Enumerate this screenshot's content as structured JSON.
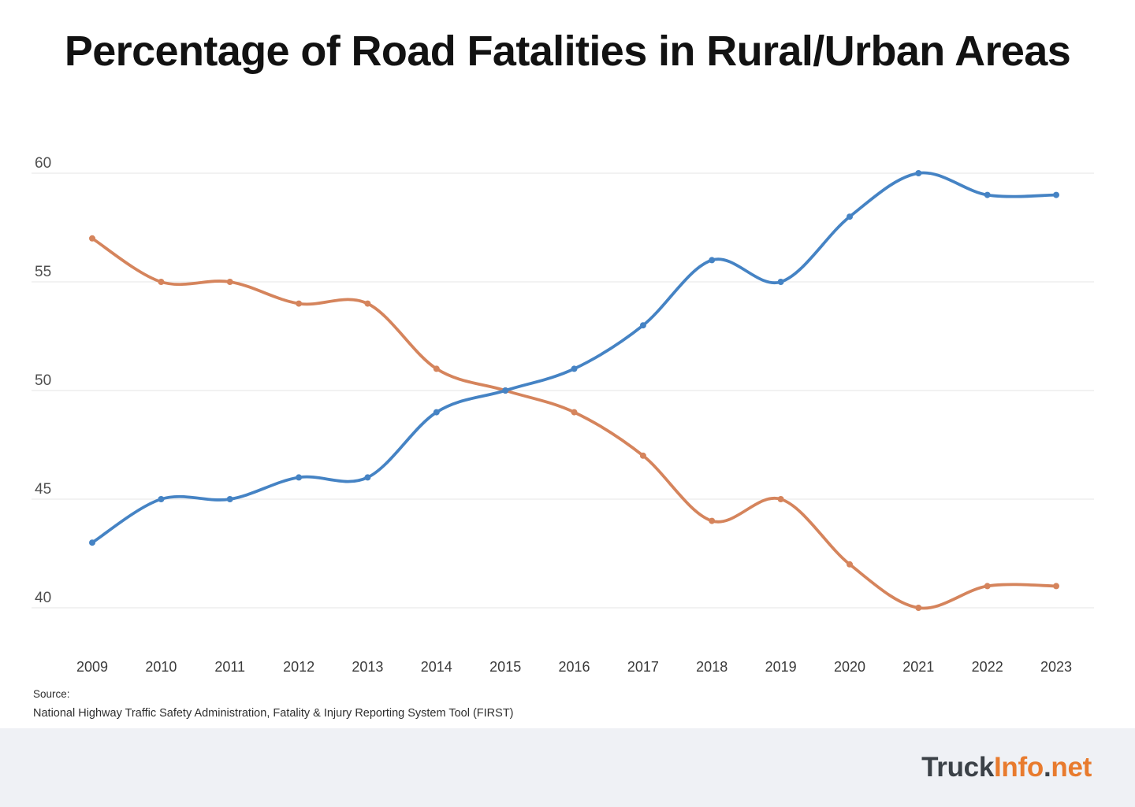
{
  "page": {
    "title": "Percentage of Road Fatalities in Rural/Urban Areas",
    "source_label": "Source:",
    "source_text": "National Highway Traffic Safety Administration, Fatality & Injury Reporting System Tool (FIRST)"
  },
  "footer": {
    "logo_segments": [
      {
        "text": "Truck",
        "color": "#3b4147"
      },
      {
        "text": "Info",
        "color": "#e87b2e"
      },
      {
        "text": ".",
        "color": "#3b4147"
      },
      {
        "text": "net",
        "color": "#e87b2e"
      }
    ]
  },
  "colors": {
    "blue_line": "#4583c4",
    "orange_line": "#d5845c",
    "gridline": "#e4e4e4",
    "axis_label": "#4f4f4f",
    "x_label": "#3a3a3a",
    "footer_bg": "#eff1f5",
    "title": "#121212"
  },
  "chart_data": {
    "type": "line",
    "title": "Percentage of Road Fatalities in Rural/Urban Areas",
    "categories": [
      "2009",
      "2010",
      "2011",
      "2012",
      "2013",
      "2014",
      "2015",
      "2016",
      "2017",
      "2018",
      "2019",
      "2020",
      "2021",
      "2022",
      "2023"
    ],
    "series": [
      {
        "name": "orange-series",
        "color": "#d5845c",
        "values": [
          57,
          55,
          55,
          54,
          54,
          51,
          50,
          49,
          47,
          44,
          45,
          42,
          40,
          41,
          41
        ]
      },
      {
        "name": "blue-series",
        "color": "#4583c4",
        "values": [
          43,
          45,
          45,
          46,
          46,
          49,
          50,
          51,
          53,
          56,
          55,
          58,
          60,
          59,
          59
        ]
      }
    ],
    "xlabel": "",
    "ylabel": "",
    "ylim": [
      40,
      60
    ],
    "yticks": [
      40,
      45,
      50,
      55,
      60
    ],
    "grid": "horizontal-only",
    "legend": "none",
    "markers": "dots"
  }
}
